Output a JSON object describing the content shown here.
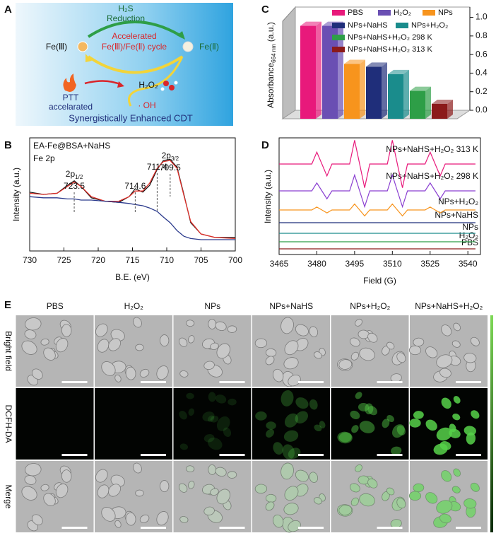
{
  "panel_labels": [
    "A",
    "B",
    "C",
    "D",
    "E"
  ],
  "diagram": {
    "h2s": "H₂S",
    "reduction": "Reduction",
    "accelerated": "Accelerated",
    "cycle": "Fe(Ⅲ)/Fe(Ⅱ) cycle",
    "fe3": "Fe(Ⅲ)",
    "fe2": "Fe(Ⅱ)",
    "ptt": "PTT",
    "ptt_note": "accelarated",
    "h2o2": "H₂O₂",
    "oh": "· OH",
    "caption": "Synergistically Enhanced CDT"
  },
  "chart_data": [
    {
      "type": "line",
      "text": [
        "EA-Fe@BSA+NaHS",
        "Fe 2p"
      ],
      "xlabel": "B.E. (eV)",
      "ylabel": "Intensity (a.u.)",
      "x": [
        730,
        728,
        726,
        724.5,
        723.5,
        722.5,
        721,
        719,
        717,
        715.5,
        714.6,
        713.5,
        712.5,
        711.4,
        710.5,
        709.5,
        708.5,
        707.5,
        706.5,
        705,
        703,
        700
      ],
      "xlim": [
        730,
        700
      ],
      "xticks": [
        730,
        725,
        720,
        715,
        710,
        705,
        700
      ],
      "ylim": [
        0,
        100
      ],
      "series": [
        {
          "color": "#111111",
          "values": [
            52,
            50,
            51,
            58,
            62,
            57,
            47,
            44,
            43,
            48,
            55,
            52,
            58,
            72,
            80,
            81,
            74,
            50,
            25,
            15,
            12,
            12
          ]
        },
        {
          "color": "#e0302a",
          "values": [
            51,
            50,
            51,
            57,
            61,
            57,
            48,
            44,
            44,
            48,
            53,
            53,
            60,
            73,
            79,
            80,
            73,
            49,
            26,
            15,
            12,
            11
          ]
        },
        {
          "color": "#2b3a8c",
          "values": [
            48,
            47,
            47,
            46,
            46,
            45,
            45,
            44,
            43,
            42,
            41,
            40,
            38,
            35,
            30,
            25,
            18,
            13,
            11,
            10,
            10,
            10
          ]
        }
      ],
      "peaks": [
        {
          "x": 723.5,
          "name": "2p",
          "sub": "1/2"
        },
        {
          "x": 714.6
        },
        {
          "x": 711.4
        },
        {
          "x": 709.5,
          "name": "2p",
          "sub": "3/2"
        }
      ]
    },
    {
      "type": "bar3d",
      "ylabel": "Absorbance",
      "ylabel_sub": "664 nm",
      "ylabel_unit": "(a.u.)",
      "categories": [
        "PBS",
        "H₂O₂",
        "NPs",
        "NPs+NaHS",
        "NPs+H₂O₂",
        "NPs+NaHS+H₂O₂ 298 K",
        "NPs+NaHS+H₂O₂ 313 K"
      ],
      "values": [
        1.0,
        1.0,
        0.59,
        0.56,
        0.48,
        0.3,
        0.16
      ],
      "colors": [
        "#e8197b",
        "#6a4fb3",
        "#f7941d",
        "#1f2e7a",
        "#1a8c8c",
        "#2e9e47",
        "#8b1a1a"
      ],
      "ylim": [
        0,
        1.05
      ],
      "yticks": [
        {
          "value": 0,
          "label": "0.0"
        },
        0.2,
        0.4,
        0.6,
        0.8,
        {
          "value": 1,
          "label": "1.0"
        }
      ]
    },
    {
      "type": "spectra",
      "xlabel": "Field (G)",
      "ylabel": "Intensity (a.u.)",
      "x": [
        3465,
        3478,
        3480,
        3482,
        3484,
        3486,
        3493,
        3495,
        3497,
        3499,
        3501,
        3508,
        3510,
        3512,
        3514,
        3516,
        3523,
        3525,
        3527,
        3529,
        3531,
        3543
      ],
      "xlim": [
        3465,
        3545
      ],
      "xticks": [
        3465,
        3480,
        3495,
        3510,
        3525,
        3540
      ],
      "series": [
        {
          "name": "PBS",
          "color": "#8b1a1a",
          "values": [
            0,
            0,
            0,
            0,
            0,
            0,
            0,
            0,
            0,
            0,
            0,
            0,
            0,
            0,
            0,
            0,
            0,
            0,
            0,
            0,
            0,
            0
          ]
        },
        {
          "name": "H₂O₂",
          "color": "#2e9e47",
          "values": [
            0,
            0,
            0,
            0,
            0,
            0,
            0,
            0,
            0,
            0,
            0,
            0,
            0,
            0,
            0,
            0,
            0,
            0,
            0,
            0,
            0,
            0
          ]
        },
        {
          "name": "NPs",
          "color": "#1a8c8c",
          "values": [
            0,
            0,
            0,
            0,
            0,
            0,
            0,
            0,
            0,
            0,
            0,
            0,
            0,
            0,
            0,
            0,
            0,
            0,
            0,
            0,
            0,
            0
          ]
        },
        {
          "name": "NPs+NaHS",
          "color": "#1f2e7a",
          "values": [
            0,
            0,
            0,
            0,
            0,
            0,
            0,
            0,
            0,
            0,
            0,
            0,
            0,
            0,
            0,
            0,
            0,
            0,
            0,
            0,
            0,
            0
          ]
        },
        {
          "name": "NPs+H₂O₂",
          "color": "#f7941d",
          "values": [
            0,
            0,
            1.5,
            0,
            -1.5,
            0,
            0,
            3,
            0,
            -3,
            0,
            0,
            3,
            0,
            -3,
            0,
            0,
            1.5,
            0,
            -1.5,
            0,
            0
          ]
        },
        {
          "name": "NPs+NaHS+H₂O₂ 298 K",
          "color": "#8a3fd1",
          "values": [
            0,
            0,
            4,
            0,
            -4,
            0,
            0,
            8,
            0,
            -8,
            0,
            0,
            8,
            0,
            -8,
            0,
            0,
            4,
            0,
            -4,
            0,
            0
          ]
        },
        {
          "name": "NPs+NaHS+H₂O₂ 313 K",
          "color": "#e8197b",
          "values": [
            0,
            0,
            6,
            0,
            -6,
            0,
            0,
            12,
            0,
            -12,
            0,
            0,
            12,
            0,
            -12,
            0,
            0,
            6,
            0,
            -6,
            0,
            0
          ]
        }
      ]
    }
  ],
  "microscopy": {
    "columns": [
      "PBS",
      "H₂O₂",
      "NPs",
      "NPs+NaHS",
      "NPs+H₂O₂",
      "NPs+NaHS+H₂O₂"
    ],
    "rows": [
      "Bright field",
      "DCFH-DA",
      "Merge"
    ]
  }
}
